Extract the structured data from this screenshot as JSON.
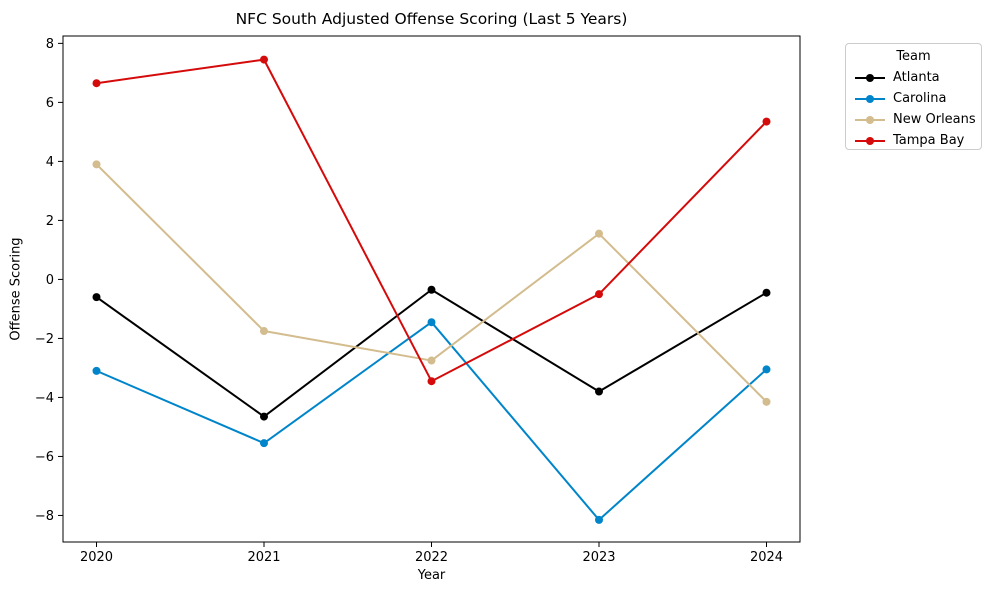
{
  "figure": {
    "title": "NFC South Adjusted Offense Scoring (Last 5 Years)",
    "background_color": "#ffffff",
    "axes_edge_color": "#000000"
  },
  "legend": {
    "title": "Team",
    "entries": [
      "Atlanta",
      "Carolina",
      "New Orleans",
      "Tampa Bay"
    ]
  },
  "chart_data": {
    "type": "line",
    "title": "NFC South Adjusted Offense Scoring (Last 5 Years)",
    "xlabel": "Year",
    "ylabel": "Offense Scoring",
    "x": [
      2020,
      2021,
      2022,
      2023,
      2024
    ],
    "xtick_labels": [
      "2020",
      "2021",
      "2022",
      "2023",
      "2024"
    ],
    "yticks": [
      8,
      6,
      4,
      2,
      0,
      -2,
      -4,
      -6,
      -8
    ],
    "xlim": [
      2019.8,
      2024.2
    ],
    "ylim": [
      -8.9,
      8.25
    ],
    "grid": false,
    "marker": "circle",
    "legend_position": "outside-upper-right",
    "legend_title": "Team",
    "series": [
      {
        "name": "Atlanta",
        "color": "#000000",
        "values": [
          -0.6,
          -4.65,
          -0.35,
          -3.8,
          -0.45
        ]
      },
      {
        "name": "Carolina",
        "color": "#0085CA",
        "values": [
          -3.1,
          -5.55,
          -1.45,
          -8.15,
          -3.05
        ]
      },
      {
        "name": "New Orleans",
        "color": "#D3BC8D",
        "values": [
          3.9,
          -1.75,
          -2.75,
          1.55,
          -4.15
        ]
      },
      {
        "name": "Tampa Bay",
        "color": "#D50A0A",
        "values": [
          6.65,
          7.45,
          -3.45,
          -0.5,
          5.35
        ]
      }
    ]
  }
}
